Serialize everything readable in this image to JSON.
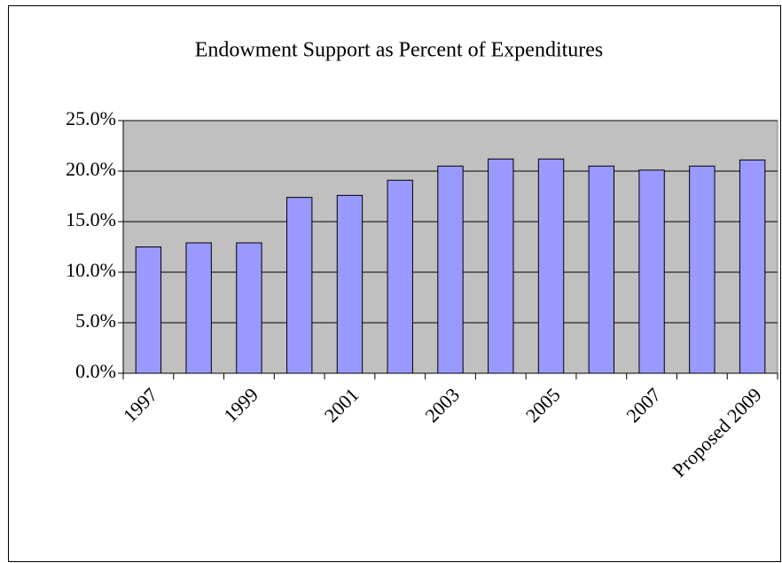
{
  "chart_data": {
    "type": "bar",
    "title": "Endowment Support as Percent of Expenditures",
    "categories": [
      "1997",
      null,
      "1999",
      null,
      "2001",
      null,
      "2003",
      null,
      "2005",
      null,
      "2007",
      null,
      "Proposed 2009"
    ],
    "values": [
      12.5,
      12.9,
      12.9,
      17.4,
      17.6,
      19.1,
      20.5,
      21.2,
      21.2,
      20.5,
      20.1,
      20.5,
      21.1
    ],
    "color": "#9999ff",
    "plot_background": "#c0c0c0",
    "ylim": [
      0,
      25
    ],
    "yticks": [
      {
        "value": 0,
        "label": "0.0%"
      },
      {
        "value": 5,
        "label": "5.0%"
      },
      {
        "value": 10,
        "label": "10.0%"
      },
      {
        "value": 15,
        "label": "15.0%"
      },
      {
        "value": 20,
        "label": "20.0%"
      },
      {
        "value": 25,
        "label": "25.0%"
      }
    ],
    "grid": true
  }
}
